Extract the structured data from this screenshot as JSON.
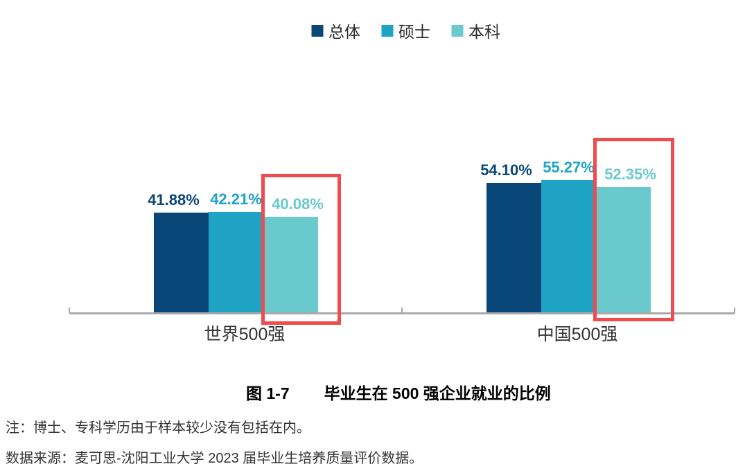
{
  "chart_data": {
    "type": "bar",
    "categories": [
      "世界500强",
      "中国500强"
    ],
    "series": [
      {
        "name": "总体",
        "color": "#0A4779",
        "values": [
          41.88,
          54.1
        ],
        "labels": [
          "41.88%",
          "54.10%"
        ]
      },
      {
        "name": "硕士",
        "color": "#1EA3C5",
        "values": [
          42.21,
          55.27
        ],
        "labels": [
          "42.21%",
          "55.27%"
        ]
      },
      {
        "name": "本科",
        "color": "#69C9CD",
        "values": [
          40.08,
          52.35
        ],
        "labels": [
          "40.08%",
          "52.35%"
        ]
      }
    ],
    "ylim": [
      0,
      60
    ],
    "grid": false,
    "legend_position": "top",
    "value_labels": "shown above bars, colored per series",
    "axis_color": "#A9A9A9",
    "highlight": {
      "series": "本科",
      "color": "#F04C4D",
      "note": "red boxes drawn around the 本科 bars of both categories"
    }
  },
  "caption": {
    "figure_number": "图 1-7",
    "title": "毕业生在 500 强企业就业的比例"
  },
  "notes": [
    "注：博士、专科学历由于样本较少没有包括在内。",
    "数据来源：麦可思-沈阳工业大学 2023 届毕业生培养质量评价数据。"
  ]
}
